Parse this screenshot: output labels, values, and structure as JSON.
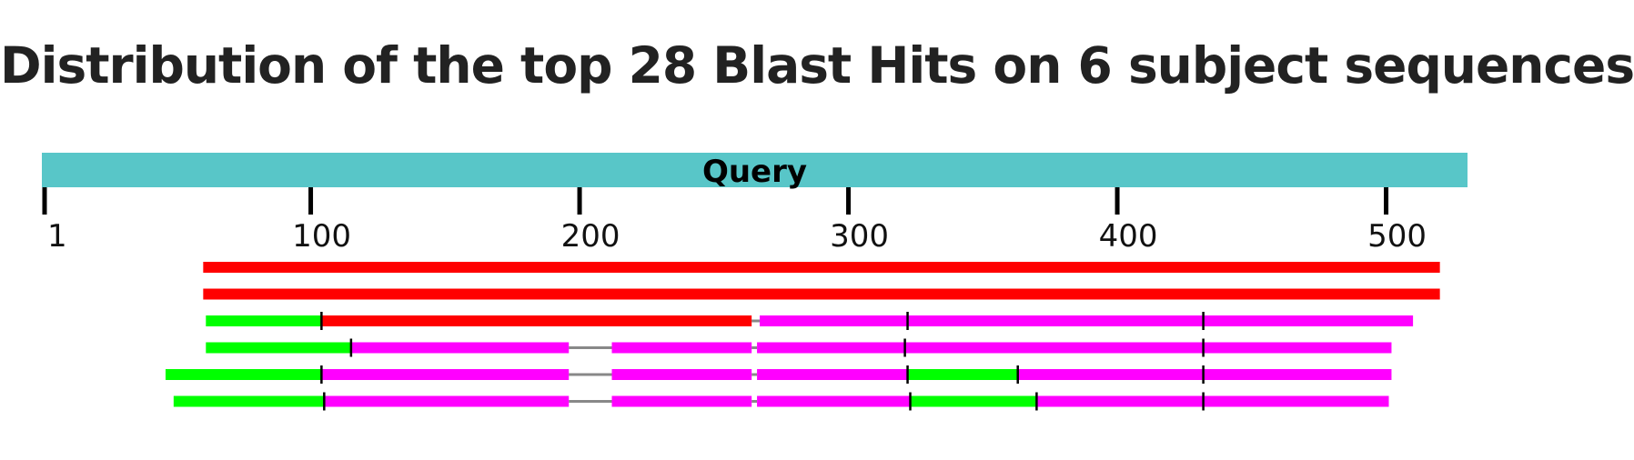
{
  "title": "Distribution of the top 28 Blast Hits on 6 subject sequences",
  "chart_data": {
    "type": "alignment",
    "query": {
      "label": "Query",
      "start": 1,
      "end": 531,
      "color": "#58C6C8"
    },
    "axis": {
      "ticks": [
        {
          "value": 1,
          "label": "1"
        },
        {
          "value": 100,
          "label": "100"
        },
        {
          "value": 200,
          "label": "200"
        },
        {
          "value": 300,
          "label": "300"
        },
        {
          "value": 400,
          "label": "400"
        },
        {
          "value": 500,
          "label": "500"
        }
      ]
    },
    "colors": {
      "red": "#FF0000",
      "magenta": "#FF00FF",
      "green": "#00FF00",
      "gap": "#888888",
      "divider": "#000000"
    },
    "subjects": [
      {
        "segments": [
          {
            "start": 60,
            "end": 520,
            "color": "red"
          }
        ],
        "gaps": [],
        "dividers": []
      },
      {
        "segments": [
          {
            "start": 60,
            "end": 520,
            "color": "red"
          }
        ],
        "gaps": [],
        "dividers": []
      },
      {
        "segments": [
          {
            "start": 61,
            "end": 104,
            "color": "green"
          },
          {
            "start": 104,
            "end": 264,
            "color": "red"
          },
          {
            "start": 267,
            "end": 510,
            "color": "magenta"
          }
        ],
        "gaps": [
          {
            "start": 264,
            "end": 267
          }
        ],
        "dividers": [
          104,
          322,
          432
        ]
      },
      {
        "segments": [
          {
            "start": 61,
            "end": 115,
            "color": "green"
          },
          {
            "start": 115,
            "end": 196,
            "color": "magenta"
          },
          {
            "start": 212,
            "end": 264,
            "color": "magenta"
          },
          {
            "start": 266,
            "end": 502,
            "color": "magenta"
          }
        ],
        "gaps": [
          {
            "start": 196,
            "end": 212
          },
          {
            "start": 264,
            "end": 266
          }
        ],
        "dividers": [
          115,
          321,
          432
        ]
      },
      {
        "segments": [
          {
            "start": 46,
            "end": 104,
            "color": "green"
          },
          {
            "start": 104,
            "end": 196,
            "color": "magenta"
          },
          {
            "start": 212,
            "end": 264,
            "color": "magenta"
          },
          {
            "start": 266,
            "end": 322,
            "color": "magenta"
          },
          {
            "start": 322,
            "end": 363,
            "color": "green"
          },
          {
            "start": 363,
            "end": 502,
            "color": "magenta"
          }
        ],
        "gaps": [
          {
            "start": 196,
            "end": 212
          },
          {
            "start": 264,
            "end": 266
          }
        ],
        "dividers": [
          104,
          322,
          363,
          432
        ]
      },
      {
        "segments": [
          {
            "start": 49,
            "end": 105,
            "color": "green"
          },
          {
            "start": 105,
            "end": 196,
            "color": "magenta"
          },
          {
            "start": 212,
            "end": 264,
            "color": "magenta"
          },
          {
            "start": 266,
            "end": 323,
            "color": "magenta"
          },
          {
            "start": 323,
            "end": 370,
            "color": "green"
          },
          {
            "start": 370,
            "end": 501,
            "color": "magenta"
          }
        ],
        "gaps": [
          {
            "start": 196,
            "end": 212
          },
          {
            "start": 264,
            "end": 266
          }
        ],
        "dividers": [
          105,
          323,
          370,
          432
        ]
      }
    ]
  }
}
